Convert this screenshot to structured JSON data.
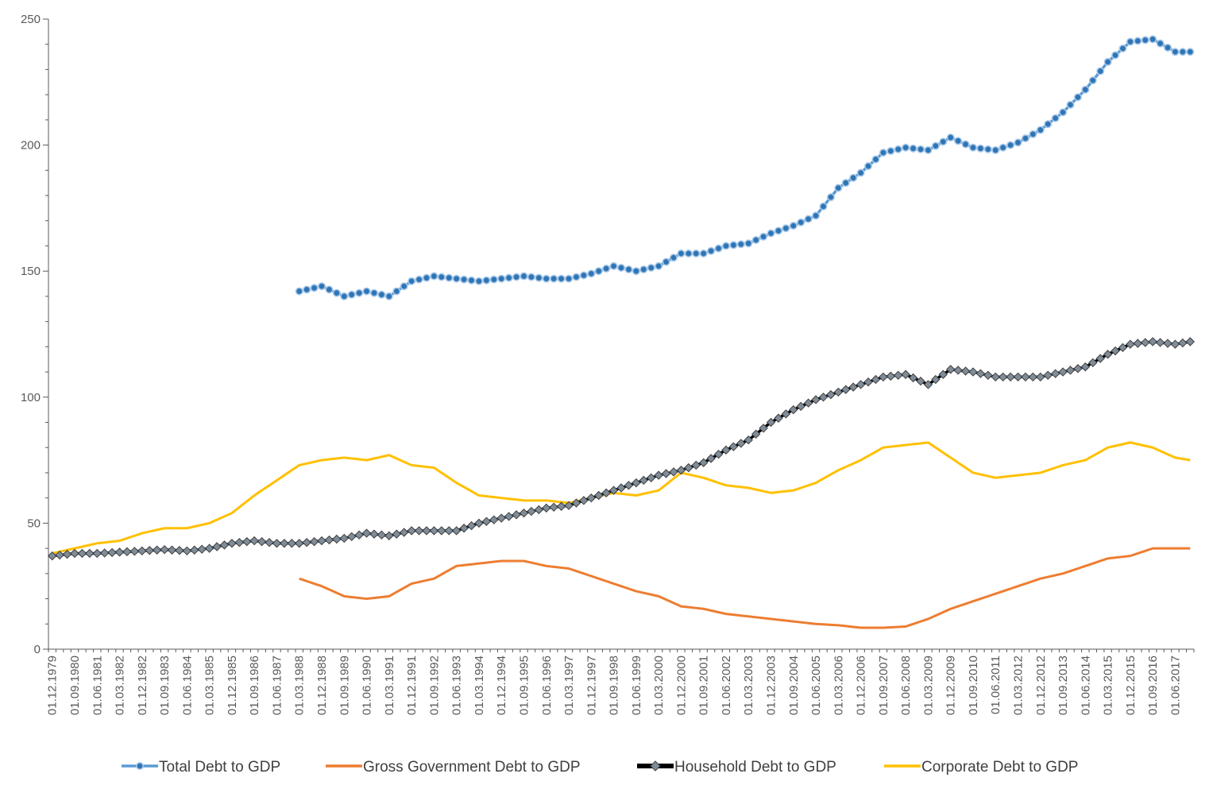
{
  "chart_data": {
    "type": "line",
    "title": "",
    "xlabel": "",
    "ylabel": "",
    "ylim": [
      0,
      250
    ],
    "yticks": [
      0,
      50,
      100,
      150,
      200,
      250
    ],
    "grid": false,
    "legend_position": "bottom",
    "x_start": "01.12.1979",
    "x_end": "01.12.2017",
    "x_frequency": "quarterly",
    "x_tick_labels": [
      "01.12.1979",
      "01.09.1980",
      "01.06.1981",
      "01.03.1982",
      "01.12.1982",
      "01.09.1983",
      "01.06.1984",
      "01.03.1985",
      "01.12.1985",
      "01.09.1986",
      "01.06.1987",
      "01.03.1988",
      "01.12.1988",
      "01.09.1989",
      "01.06.1990",
      "01.03.1991",
      "01.12.1991",
      "01.09.1992",
      "01.06.1993",
      "01.03.1994",
      "01.12.1994",
      "01.09.1995",
      "01.06.1996",
      "01.03.1997",
      "01.12.1997",
      "01.09.1998",
      "01.06.1999",
      "01.03.2000",
      "01.12.2000",
      "01.09.2001",
      "01.06.2002",
      "01.03.2003",
      "01.12.2003",
      "01.09.2004",
      "01.06.2005",
      "01.03.2006",
      "01.12.2006",
      "01.09.2007",
      "01.06.2008",
      "01.03.2009",
      "01.12.2009",
      "01.09.2010",
      "01.06.2011",
      "01.03.2012",
      "01.12.2012",
      "01.09.2013",
      "01.06.2014",
      "01.03.2015",
      "01.12.2015",
      "01.09.2016",
      "01.06.2017"
    ],
    "series": [
      {
        "name": "Total Debt to GDP",
        "color": "#5B9BD5",
        "marker": "circle",
        "points": [
          [
            "01.03.1988",
            142
          ],
          [
            "01.12.1988",
            144
          ],
          [
            "01.09.1989",
            140
          ],
          [
            "01.06.1990",
            142
          ],
          [
            "01.03.1991",
            140
          ],
          [
            "01.12.1991",
            146
          ],
          [
            "01.09.1992",
            148
          ],
          [
            "01.06.1993",
            147
          ],
          [
            "01.03.1994",
            146
          ],
          [
            "01.12.1994",
            147
          ],
          [
            "01.09.1995",
            148
          ],
          [
            "01.06.1996",
            147
          ],
          [
            "01.03.1997",
            147
          ],
          [
            "01.12.1997",
            149
          ],
          [
            "01.09.1998",
            152
          ],
          [
            "01.06.1999",
            150
          ],
          [
            "01.03.2000",
            152
          ],
          [
            "01.12.2000",
            157
          ],
          [
            "01.09.2001",
            157
          ],
          [
            "01.06.2002",
            160
          ],
          [
            "01.03.2003",
            161
          ],
          [
            "01.12.2003",
            165
          ],
          [
            "01.09.2004",
            168
          ],
          [
            "01.06.2005",
            172
          ],
          [
            "01.03.2006",
            183
          ],
          [
            "01.12.2006",
            189
          ],
          [
            "01.09.2007",
            197
          ],
          [
            "01.06.2008",
            199
          ],
          [
            "01.03.2009",
            198
          ],
          [
            "01.12.2009",
            203
          ],
          [
            "01.09.2010",
            199
          ],
          [
            "01.06.2011",
            198
          ],
          [
            "01.03.2012",
            201
          ],
          [
            "01.12.2012",
            206
          ],
          [
            "01.09.2013",
            213
          ],
          [
            "01.06.2014",
            222
          ],
          [
            "01.03.2015",
            233
          ],
          [
            "01.12.2015",
            241
          ],
          [
            "01.09.2016",
            242
          ],
          [
            "01.06.2017",
            237
          ],
          [
            "01.12.2017",
            237
          ]
        ]
      },
      {
        "name": "Gross Government Debt to GDP",
        "color": "#ED7D31",
        "marker": "none",
        "points": [
          [
            "01.03.1988",
            28
          ],
          [
            "01.12.1988",
            25
          ],
          [
            "01.09.1989",
            21
          ],
          [
            "01.06.1990",
            20
          ],
          [
            "01.03.1991",
            21
          ],
          [
            "01.12.1991",
            26
          ],
          [
            "01.09.1992",
            28
          ],
          [
            "01.06.1993",
            33
          ],
          [
            "01.03.1994",
            34
          ],
          [
            "01.12.1994",
            35
          ],
          [
            "01.09.1995",
            35
          ],
          [
            "01.06.1996",
            33
          ],
          [
            "01.03.1997",
            32
          ],
          [
            "01.12.1997",
            29
          ],
          [
            "01.09.1998",
            26
          ],
          [
            "01.06.1999",
            23
          ],
          [
            "01.03.2000",
            21
          ],
          [
            "01.12.2000",
            17
          ],
          [
            "01.09.2001",
            16
          ],
          [
            "01.06.2002",
            14
          ],
          [
            "01.03.2003",
            13
          ],
          [
            "01.12.2003",
            12
          ],
          [
            "01.09.2004",
            11
          ],
          [
            "01.06.2005",
            10
          ],
          [
            "01.03.2006",
            9.5
          ],
          [
            "01.12.2006",
            8.5
          ],
          [
            "01.09.2007",
            8.5
          ],
          [
            "01.06.2008",
            9
          ],
          [
            "01.03.2009",
            12
          ],
          [
            "01.12.2009",
            16
          ],
          [
            "01.09.2010",
            19
          ],
          [
            "01.06.2011",
            22
          ],
          [
            "01.03.2012",
            25
          ],
          [
            "01.12.2012",
            28
          ],
          [
            "01.09.2013",
            30
          ],
          [
            "01.06.2014",
            33
          ],
          [
            "01.03.2015",
            36
          ],
          [
            "01.12.2015",
            37
          ],
          [
            "01.09.2016",
            40
          ],
          [
            "01.06.2017",
            40
          ],
          [
            "01.12.2017",
            40
          ]
        ]
      },
      {
        "name": "Household Debt to GDP",
        "color": "#000000",
        "marker": "diamond",
        "points": [
          [
            "01.12.1979",
            37
          ],
          [
            "01.09.1980",
            38
          ],
          [
            "01.06.1981",
            38
          ],
          [
            "01.03.1982",
            38.5
          ],
          [
            "01.12.1982",
            39
          ],
          [
            "01.09.1983",
            39.5
          ],
          [
            "01.06.1984",
            39
          ],
          [
            "01.03.1985",
            40
          ],
          [
            "01.12.1985",
            42
          ],
          [
            "01.09.1986",
            43
          ],
          [
            "01.06.1987",
            42
          ],
          [
            "01.03.1988",
            42
          ],
          [
            "01.12.1988",
            43
          ],
          [
            "01.09.1989",
            44
          ],
          [
            "01.06.1990",
            46
          ],
          [
            "01.03.1991",
            45
          ],
          [
            "01.12.1991",
            47
          ],
          [
            "01.09.1992",
            47
          ],
          [
            "01.06.1993",
            47
          ],
          [
            "01.03.1994",
            50
          ],
          [
            "01.12.1994",
            52
          ],
          [
            "01.09.1995",
            54
          ],
          [
            "01.06.1996",
            56
          ],
          [
            "01.03.1997",
            57
          ],
          [
            "01.12.1997",
            60
          ],
          [
            "01.09.1998",
            63
          ],
          [
            "01.06.1999",
            66
          ],
          [
            "01.03.2000",
            69
          ],
          [
            "01.12.2000",
            71
          ],
          [
            "01.09.2001",
            74
          ],
          [
            "01.06.2002",
            79
          ],
          [
            "01.03.2003",
            83
          ],
          [
            "01.12.2003",
            90
          ],
          [
            "01.09.2004",
            95
          ],
          [
            "01.06.2005",
            99
          ],
          [
            "01.03.2006",
            102
          ],
          [
            "01.12.2006",
            105
          ],
          [
            "01.09.2007",
            108
          ],
          [
            "01.06.2008",
            109
          ],
          [
            "01.03.2009",
            105
          ],
          [
            "01.12.2009",
            111
          ],
          [
            "01.09.2010",
            110
          ],
          [
            "01.06.2011",
            108
          ],
          [
            "01.03.2012",
            108
          ],
          [
            "01.12.2012",
            108
          ],
          [
            "01.09.2013",
            110
          ],
          [
            "01.06.2014",
            112
          ],
          [
            "01.03.2015",
            117
          ],
          [
            "01.12.2015",
            121
          ],
          [
            "01.09.2016",
            122
          ],
          [
            "01.06.2017",
            121
          ],
          [
            "01.12.2017",
            122
          ]
        ]
      },
      {
        "name": "Corporate Debt to GDP",
        "color": "#FFC000",
        "marker": "none",
        "points": [
          [
            "01.12.1979",
            38
          ],
          [
            "01.09.1980",
            40
          ],
          [
            "01.06.1981",
            42
          ],
          [
            "01.03.1982",
            43
          ],
          [
            "01.12.1982",
            46
          ],
          [
            "01.09.1983",
            48
          ],
          [
            "01.06.1984",
            48
          ],
          [
            "01.03.1985",
            50
          ],
          [
            "01.12.1985",
            54
          ],
          [
            "01.09.1986",
            61
          ],
          [
            "01.06.1987",
            67
          ],
          [
            "01.03.1988",
            73
          ],
          [
            "01.12.1988",
            75
          ],
          [
            "01.09.1989",
            76
          ],
          [
            "01.06.1990",
            75
          ],
          [
            "01.03.1991",
            77
          ],
          [
            "01.12.1991",
            73
          ],
          [
            "01.09.1992",
            72
          ],
          [
            "01.06.1993",
            66
          ],
          [
            "01.03.1994",
            61
          ],
          [
            "01.12.1994",
            60
          ],
          [
            "01.09.1995",
            59
          ],
          [
            "01.06.1996",
            59
          ],
          [
            "01.03.1997",
            58
          ],
          [
            "01.12.1997",
            60
          ],
          [
            "01.09.1998",
            62
          ],
          [
            "01.06.1999",
            61
          ],
          [
            "01.03.2000",
            63
          ],
          [
            "01.12.2000",
            70
          ],
          [
            "01.09.2001",
            68
          ],
          [
            "01.06.2002",
            65
          ],
          [
            "01.03.2003",
            64
          ],
          [
            "01.12.2003",
            62
          ],
          [
            "01.09.2004",
            63
          ],
          [
            "01.06.2005",
            66
          ],
          [
            "01.03.2006",
            71
          ],
          [
            "01.12.2006",
            75
          ],
          [
            "01.09.2007",
            80
          ],
          [
            "01.06.2008",
            81
          ],
          [
            "01.03.2009",
            82
          ],
          [
            "01.12.2009",
            76
          ],
          [
            "01.09.2010",
            70
          ],
          [
            "01.06.2011",
            68
          ],
          [
            "01.03.2012",
            69
          ],
          [
            "01.12.2012",
            70
          ],
          [
            "01.09.2013",
            73
          ],
          [
            "01.06.2014",
            75
          ],
          [
            "01.03.2015",
            80
          ],
          [
            "01.12.2015",
            82
          ],
          [
            "01.09.2016",
            80
          ],
          [
            "01.06.2017",
            76
          ],
          [
            "01.12.2017",
            75
          ]
        ]
      }
    ]
  }
}
